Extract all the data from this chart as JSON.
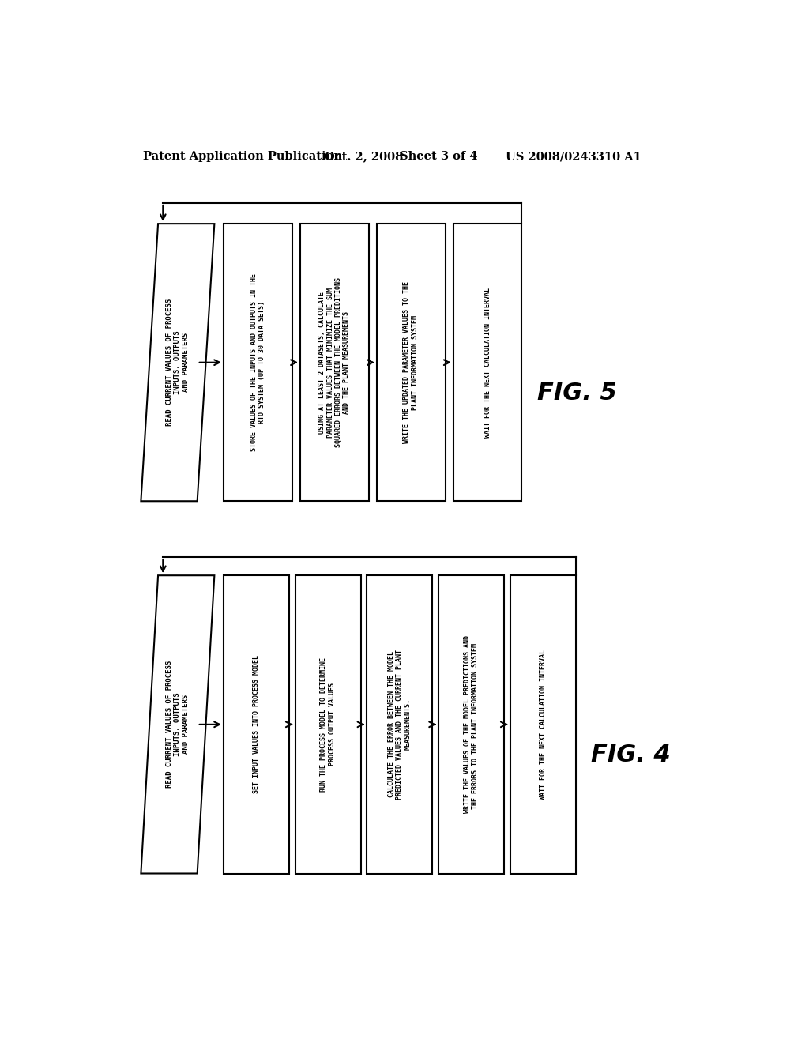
{
  "bg_color": "#ffffff",
  "header_text": "Patent Application Publication",
  "header_date": "Oct. 2, 2008",
  "header_sheet": "Sheet 3 of 4",
  "header_patent": "US 2008/0243310 A1",
  "fig5_label": "FIG. 5",
  "fig4_label": "FIG. 4",
  "fig5_steps": [
    "READ CURRENT VALUES OF PROCESS\nINPUTS, OUTPUTS\nAND PARAMETERS",
    "STORE VALUES OF THE INPUTS AND OUTPUTS IN THE\nRTO SYSTEM (UP TO 30 DATA SETS)",
    "USING AT LEAST 2 DATASETS, CALCULATE\nPARAMETER VALUES THAT MINIMIZE THE SUM\nSQUARED ERRORS BETWEEN THE MODEL PREDITIONS\nAND THE PLANT MEASUREMENTS",
    "WRITE THE UPDATED PARAMETER VALUES TO THE\nPLANT INFORMATION SYSTEM",
    "WAIT FOR THE NEXT CALCULATION INTERVAL"
  ],
  "fig4_steps": [
    "READ CURRENT VALUES OF PROCESS\nINPUTS, OUTPUTS\nAND PARAMETERS",
    "SET INPUT VALUES INTO PROCESS MODEL",
    "RUN THE PROCESS MODEL TO DETERMINE\nPROCESS OUTPUT VALUES",
    "CALCULATE THE ERROR BETWEEN THE MODEL\nPREDICTED VALUES AND THE CURRENT PLANT\nMEASUREMENTS.",
    "WRITE THE VALUES OF THE MODEL PREDICTIONS AND\nTHE ERRORS TO THE PLANT INFORMATION SYSTEM.",
    "WAIT FOR THE NEXT CALCULATION INTERVAL"
  ]
}
